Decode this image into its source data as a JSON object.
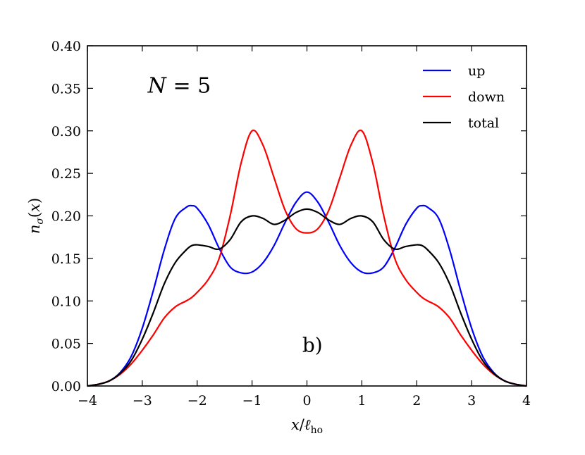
{
  "chart_data": {
    "type": "line",
    "title": "",
    "xlabel": "x/ℓ_ho",
    "ylabel": "n_σ(x)",
    "xlim": [
      -4,
      4
    ],
    "ylim": [
      0,
      0.4
    ],
    "xticks": [
      -4,
      -3,
      -2,
      -1,
      0,
      1,
      2,
      3,
      4
    ],
    "xtick_labels": [
      "−4",
      "−3",
      "−2",
      "−1",
      "0",
      "1",
      "2",
      "3",
      "4"
    ],
    "yticks": [
      0,
      0.05,
      0.1,
      0.15,
      0.2,
      0.25,
      0.3,
      0.35,
      0.4
    ],
    "ytick_labels": [
      "0.00",
      "0.05",
      "0.10",
      "0.15",
      "0.20",
      "0.25",
      "0.30",
      "0.35",
      "0.40"
    ],
    "grid": false,
    "legend_position": "top-right",
    "annotations": [
      {
        "text_math": "N = 5",
        "x": -2.9,
        "y": 0.345
      },
      {
        "text": "b)",
        "x": 0.1,
        "y": 0.04
      }
    ],
    "x": [
      -4.0,
      -3.8,
      -3.6,
      -3.4,
      -3.2,
      -3.0,
      -2.8,
      -2.6,
      -2.4,
      -2.2,
      -2.1,
      -2.0,
      -1.8,
      -1.6,
      -1.4,
      -1.2,
      -1.0,
      -0.8,
      -0.6,
      -0.4,
      -0.2,
      0.0,
      0.2,
      0.4,
      0.6,
      0.8,
      1.0,
      1.2,
      1.4,
      1.6,
      1.8,
      2.0,
      2.1,
      2.2,
      2.4,
      2.6,
      2.8,
      3.0,
      3.2,
      3.4,
      3.6,
      3.8,
      4.0
    ],
    "series": [
      {
        "name": "up",
        "color": "#0000ff",
        "values": [
          0.0,
          0.002,
          0.006,
          0.016,
          0.035,
          0.068,
          0.112,
          0.16,
          0.197,
          0.21,
          0.212,
          0.209,
          0.19,
          0.162,
          0.14,
          0.133,
          0.134,
          0.145,
          0.165,
          0.192,
          0.216,
          0.228,
          0.216,
          0.192,
          0.165,
          0.145,
          0.134,
          0.133,
          0.14,
          0.162,
          0.19,
          0.209,
          0.212,
          0.21,
          0.197,
          0.16,
          0.112,
          0.068,
          0.035,
          0.016,
          0.006,
          0.002,
          0.0
        ]
      },
      {
        "name": "down",
        "color": "#ff0000",
        "values": [
          0.0,
          0.002,
          0.006,
          0.014,
          0.026,
          0.042,
          0.06,
          0.08,
          0.093,
          0.1,
          0.104,
          0.11,
          0.125,
          0.15,
          0.2,
          0.262,
          0.3,
          0.283,
          0.245,
          0.207,
          0.185,
          0.18,
          0.185,
          0.207,
          0.245,
          0.283,
          0.3,
          0.262,
          0.2,
          0.15,
          0.125,
          0.11,
          0.104,
          0.1,
          0.093,
          0.08,
          0.06,
          0.042,
          0.026,
          0.014,
          0.006,
          0.002,
          0.0
        ]
      },
      {
        "name": "total",
        "color": "#000000",
        "values": [
          0.0,
          0.002,
          0.006,
          0.015,
          0.03,
          0.055,
          0.086,
          0.12,
          0.145,
          0.16,
          0.165,
          0.166,
          0.164,
          0.161,
          0.172,
          0.193,
          0.2,
          0.197,
          0.19,
          0.195,
          0.204,
          0.208,
          0.204,
          0.195,
          0.19,
          0.197,
          0.2,
          0.193,
          0.172,
          0.161,
          0.164,
          0.166,
          0.165,
          0.16,
          0.145,
          0.12,
          0.086,
          0.055,
          0.03,
          0.015,
          0.006,
          0.002,
          0.0
        ]
      }
    ]
  }
}
